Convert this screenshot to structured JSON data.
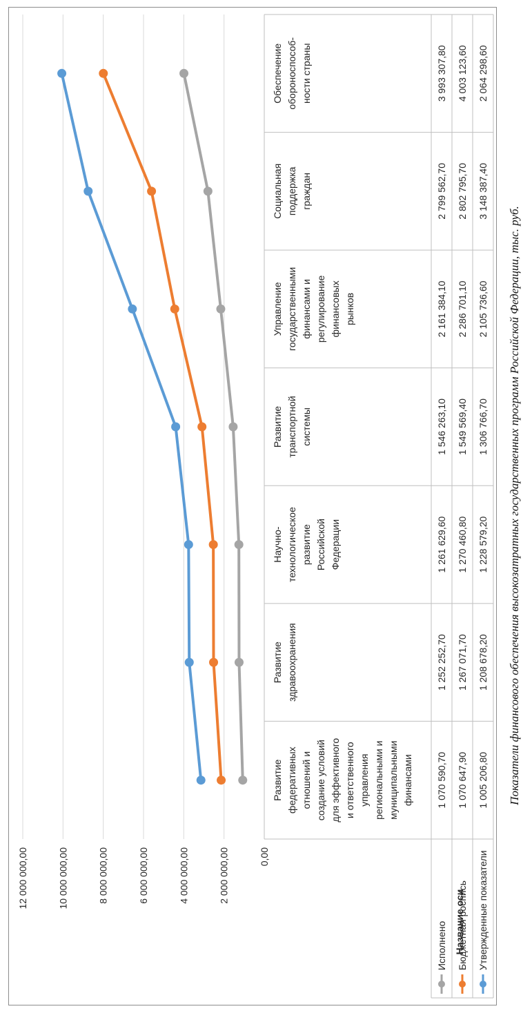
{
  "chart_data": {
    "type": "line",
    "ylabel": "Название оси",
    "ylim": [
      0,
      12000000
    ],
    "yticks": [
      0,
      2000000,
      4000000,
      6000000,
      8000000,
      10000000,
      12000000
    ],
    "ytick_labels": [
      "0,00",
      "2 000 000,00",
      "4 000 000,00",
      "6 000 000,00",
      "8 000 000,00",
      "10 000 000,00",
      "12 000 000,00"
    ],
    "grid": true,
    "categories": [
      [
        "Развитие",
        "федеративных",
        "отношений и",
        "создание условий",
        "для эффективного",
        "и ответственного",
        "управления",
        "региональными и",
        "муниципальными",
        "финансами"
      ],
      [
        "Развитие",
        "здравоохранения"
      ],
      [
        "Научно-",
        "технологическое",
        "развитие",
        "Российской",
        "Федерации"
      ],
      [
        "Развитие",
        "транспортной",
        "системы"
      ],
      [
        "Управление",
        "государственными",
        "финансами и",
        "регулирование",
        "финансовых",
        "рынков"
      ],
      [
        "Социальная",
        "поддержка",
        "граждан"
      ],
      [
        "Обеспечение",
        "обороноспособ-",
        "ности страны"
      ]
    ],
    "series": [
      {
        "name": "Исполнено",
        "color": "#a5a5a5",
        "values": [
          1070590.7,
          1252252.7,
          1261629.6,
          1546263.1,
          2161384.1,
          2799562.7,
          3993307.8
        ],
        "labels": [
          "1 070 590,70",
          "1 252 252,70",
          "1 261 629,60",
          "1 546 263,10",
          "2 161 384,10",
          "2 799 562,70",
          "3 993 307,80"
        ]
      },
      {
        "name": "Бюджетная роспись",
        "color": "#ed7d31",
        "values": [
          1070647.9,
          1267071.7,
          1270460.8,
          1549569.4,
          2286701.1,
          2802795.7,
          4003123.6
        ],
        "labels": [
          "1 070 647,90",
          "1 267 071,70",
          "1 270 460,80",
          "1 549 569,40",
          "2 286 701,10",
          "2 802 795,70",
          "4 003 123,60"
        ]
      },
      {
        "name": "Утвержденные показатели",
        "color": "#5b9bd5",
        "values": [
          1005206.8,
          1208678.2,
          1228579.2,
          1306766.7,
          2105736.6,
          3148387.4,
          2064298.6
        ],
        "labels": [
          "1 005 206,80",
          "1 208 678,20",
          "1 228 579,20",
          "1 306 766,70",
          "2 105 736,60",
          "3 148 387,40",
          "2 064 298,60"
        ]
      }
    ],
    "stacked": true,
    "legend": "table-left"
  },
  "caption": "Показатели финансового обеспечения высокозатратных государственных программ Российской Федерации, тыс. руб."
}
